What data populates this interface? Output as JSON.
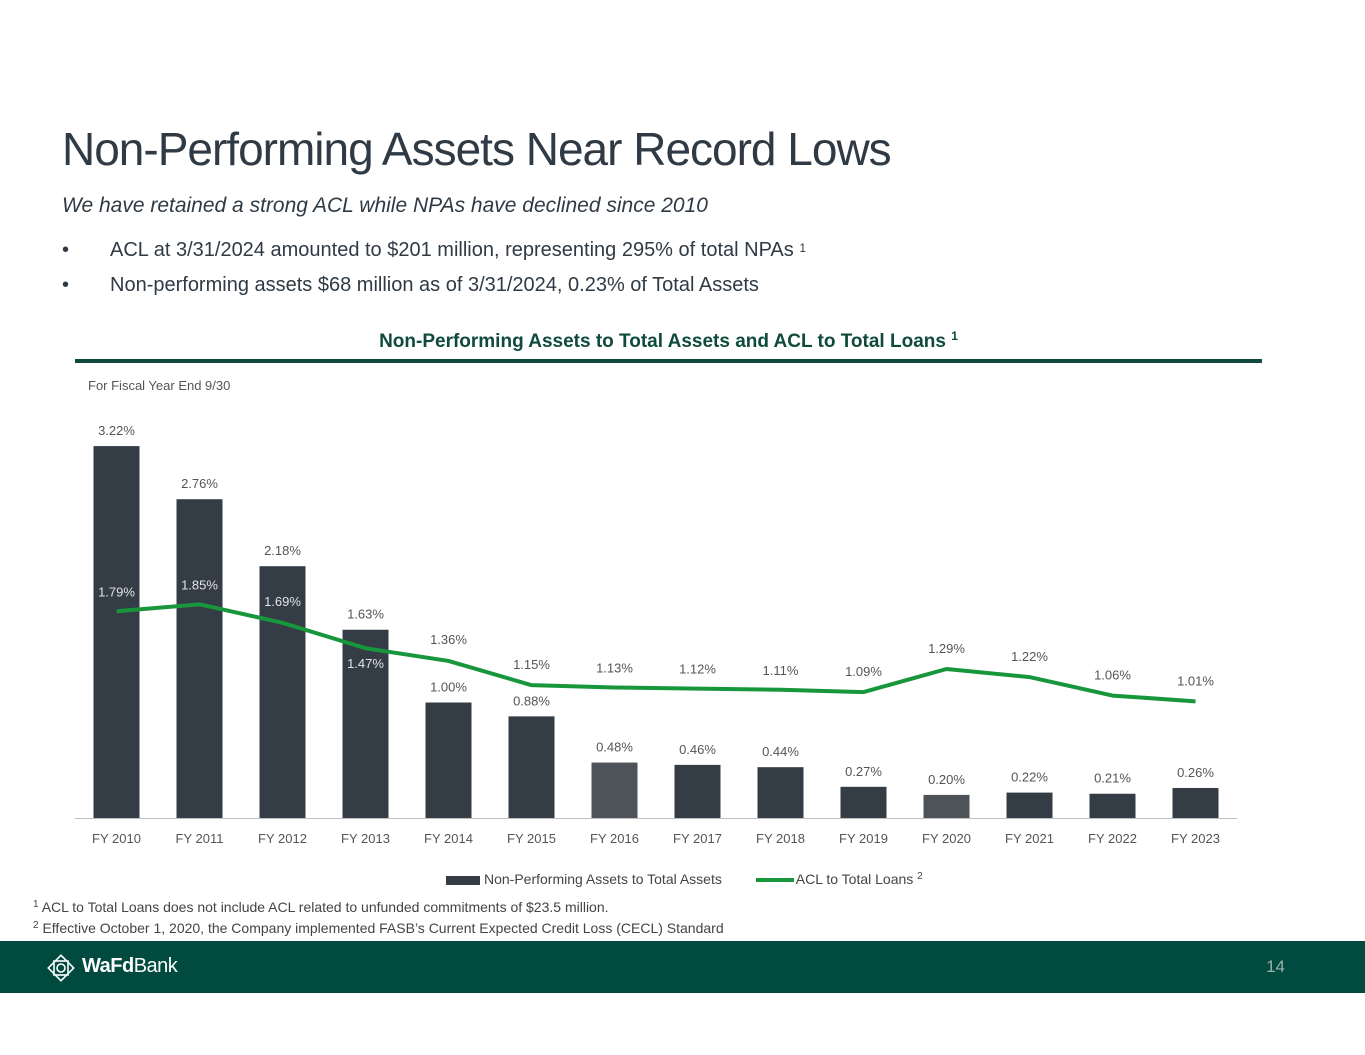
{
  "slide": {
    "title": "Non-Performing Assets Near Record Lows",
    "subtitle": "We have retained a strong ACL while NPAs have declined since 2010",
    "bullets": [
      {
        "marker": "•",
        "text": "ACL at 3/31/2024 amounted to $201 million, representing 295% of total NPAs",
        "sup": "1"
      },
      {
        "marker": "•",
        "text": "Non-performing assets $68 million as of 3/31/2024, 0.23% of Total Assets",
        "sup": ""
      }
    ],
    "chart_heading": "Non-Performing Assets to Total Assets and ACL to Total Loans",
    "chart_heading_sup": "1",
    "fy_note": "For Fiscal Year End 9/30",
    "footnotes": [
      {
        "sup": "1",
        "text": "ACL to Total Loans does not include ACL related to unfunded commitments of $23.5 million."
      },
      {
        "sup": "2",
        "text": "Effective October 1, 2020, the Company implemented FASB’s Current Expected Credit Loss (CECL) Standard"
      }
    ],
    "footer": {
      "logo_bold": "WaFd",
      "logo_rest": "Bank",
      "page_number": "14"
    }
  },
  "colors": {
    "bar": "#343c45",
    "bar_highlight": "#4d5358",
    "line": "#18963c",
    "brand_green": "#004a3f"
  },
  "chart_data": {
    "type": "bar",
    "title": "Non-Performing Assets to Total Assets and ACL to Total Loans",
    "categories": [
      "FY 2010",
      "FY 2011",
      "FY 2012",
      "FY 2013",
      "FY 2014",
      "FY 2015",
      "FY 2016",
      "FY 2017",
      "FY 2018",
      "FY 2019",
      "FY 2020",
      "FY 2021",
      "FY 2022",
      "FY 2023"
    ],
    "series": [
      {
        "name": "Non-Performing Assets to Total Assets",
        "kind": "bar",
        "values": [
          3.22,
          2.76,
          2.18,
          1.63,
          1.0,
          0.88,
          0.48,
          0.46,
          0.44,
          0.27,
          0.2,
          0.22,
          0.21,
          0.26
        ],
        "labels": [
          "3.22%",
          "2.76%",
          "2.18%",
          "1.63%",
          "1.00%",
          "0.88%",
          "0.48%",
          "0.46%",
          "0.44%",
          "0.27%",
          "0.20%",
          "0.22%",
          "0.21%",
          "0.26%"
        ],
        "highlighted": [
          "FY 2016",
          "FY 2020"
        ]
      },
      {
        "name": "ACL to Total Loans",
        "name_sup": "2",
        "kind": "line",
        "values": [
          1.79,
          1.85,
          1.69,
          1.47,
          1.36,
          1.15,
          1.13,
          1.12,
          1.11,
          1.09,
          1.29,
          1.22,
          1.06,
          1.01
        ],
        "labels": [
          "1.79%",
          "1.85%",
          "1.69%",
          "1.47%",
          "1.36%",
          "1.15%",
          "1.13%",
          "1.12%",
          "1.11%",
          "1.09%",
          "1.29%",
          "1.22%",
          "1.06%",
          "1.01%"
        ]
      }
    ],
    "xlabel": "",
    "ylabel": "",
    "ylim": [
      0,
      3.4
    ],
    "grid": false,
    "legend": "bottom-center"
  }
}
